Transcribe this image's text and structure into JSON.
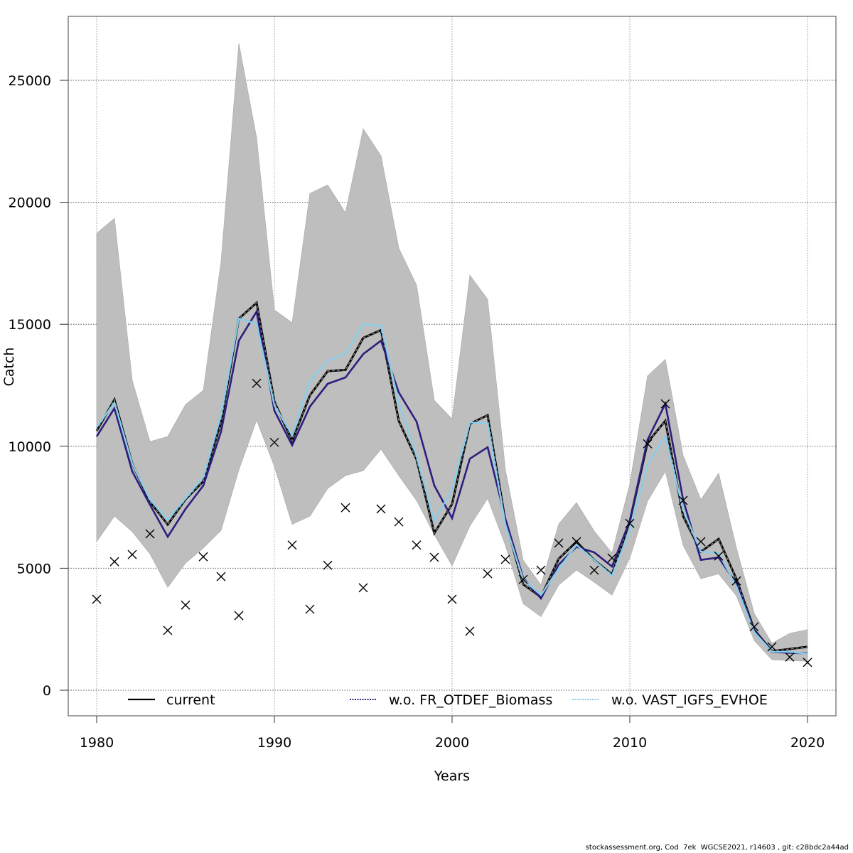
{
  "chart_data": {
    "type": "line",
    "title": "",
    "xlabel": "Years",
    "ylabel": "Catch",
    "xlim": [
      1978.4,
      2021.6
    ],
    "ylim": [
      -2000,
      27700
    ],
    "x_ticks": [
      1980,
      1990,
      2000,
      2010,
      2020
    ],
    "y_ticks": [
      0,
      5000,
      10000,
      15000,
      20000,
      25000
    ],
    "x_tick_labels": [
      "1980",
      "1990",
      "2000",
      "2010",
      "2020"
    ],
    "y_tick_labels": [
      "0",
      "5000",
      "10000",
      "15000",
      "20000",
      "25000"
    ],
    "grid": true,
    "legend_position": "bottom",
    "x": [
      1980,
      1981,
      1982,
      1983,
      1984,
      1985,
      1986,
      1987,
      1988,
      1989,
      1990,
      1991,
      1992,
      1993,
      1994,
      1995,
      1996,
      1997,
      1998,
      1999,
      2000,
      2001,
      2002,
      2003,
      2004,
      2005,
      2006,
      2007,
      2008,
      2009,
      2010,
      2011,
      2012,
      2013,
      2014,
      2015,
      2016,
      2017,
      2018,
      2019,
      2020
    ],
    "band": {
      "name": "confidence interval (current)",
      "color": "#bebebe",
      "upper": [
        18730,
        19340,
        12700,
        10190,
        10400,
        11710,
        12290,
        17570,
        26510,
        22640,
        15590,
        15060,
        20360,
        20710,
        19570,
        23010,
        21900,
        18120,
        16600,
        11880,
        11120,
        17010,
        16020,
        9030,
        5330,
        4310,
        6810,
        7690,
        6520,
        5620,
        8450,
        12880,
        13560,
        9620,
        7810,
        8890,
        5830,
        3150,
        1920,
        2330,
        2480
      ],
      "lower": [
        6090,
        7140,
        6500,
        5590,
        4220,
        5210,
        5830,
        6550,
        9030,
        11070,
        9170,
        6800,
        7140,
        8270,
        8800,
        9000,
        9880,
        8800,
        7780,
        6380,
        5100,
        6730,
        7860,
        5940,
        3550,
        3020,
        4310,
        4920,
        4430,
        3900,
        5420,
        7750,
        8970,
        5940,
        4570,
        4770,
        3870,
        2040,
        1250,
        1220,
        1190
      ]
    },
    "series": [
      {
        "name": "current",
        "color": "#000000",
        "style": "solid-with-dashed-grey",
        "values": [
          10630,
          11910,
          9290,
          7720,
          6790,
          7830,
          8560,
          10980,
          15230,
          15880,
          11830,
          10220,
          12090,
          13080,
          13130,
          14440,
          14760,
          11040,
          9460,
          6440,
          7630,
          10920,
          11270,
          6930,
          4340,
          3820,
          5390,
          6090,
          5330,
          4750,
          6930,
          10160,
          11040,
          7140,
          5680,
          6200,
          4560,
          2480,
          1600,
          1690,
          1780
        ]
      },
      {
        "name": "w.o. FR_OTDEF_Biomass",
        "color": "#2d1e7e",
        "style": "solid",
        "values": [
          10400,
          11560,
          8970,
          7600,
          6290,
          7430,
          8390,
          10600,
          14330,
          15520,
          11460,
          10040,
          11630,
          12560,
          12820,
          13780,
          14330,
          12210,
          11010,
          8390,
          7050,
          9490,
          9960,
          7030,
          4600,
          3760,
          5150,
          5880,
          5650,
          5070,
          6950,
          10270,
          11740,
          7810,
          5340,
          5440,
          4360,
          2450,
          1570,
          1530,
          1510
        ]
      },
      {
        "name": "w.o. VAST_IGFS_EVHOE",
        "color": "#87ceeb",
        "style": "dotted",
        "values": [
          10780,
          11790,
          9280,
          7810,
          6990,
          7860,
          8720,
          11270,
          15230,
          15030,
          11680,
          10460,
          12690,
          13500,
          13810,
          15000,
          14940,
          11780,
          9590,
          6930,
          8240,
          10980,
          10940,
          6790,
          4540,
          3900,
          4980,
          5960,
          5330,
          4690,
          6560,
          9250,
          10420,
          7400,
          5680,
          5620,
          4250,
          2380,
          1580,
          1570,
          1490
        ]
      }
    ],
    "observations": {
      "name": "observed catch",
      "marker": "x",
      "color": "#000000",
      "values": [
        3730,
        5270,
        5560,
        6410,
        2450,
        3490,
        5470,
        4660,
        3060,
        12580,
        10160,
        5950,
        3320,
        5120,
        7480,
        4200,
        7430,
        6900,
        5950,
        5450,
        3730,
        2420,
        4780,
        5360,
        4540,
        4920,
        6030,
        6090,
        4920,
        5420,
        6840,
        10100,
        11740,
        7780,
        6090,
        5500,
        4480,
        2600,
        1780,
        1360,
        1140
      ]
    },
    "legend": [
      {
        "label": "current",
        "color": "#000000"
      },
      {
        "label": "w.o. FR_OTDEF_Biomass",
        "color": "#2d1e7e"
      },
      {
        "label": "w.o. VAST_IGFS_EVHOE",
        "color": "#87ceeb"
      }
    ]
  },
  "footer": {
    "text": "stockassessment.org, Cod  7ek  WGCSE2021, r14603 , git: c28bdc2a44ad"
  }
}
